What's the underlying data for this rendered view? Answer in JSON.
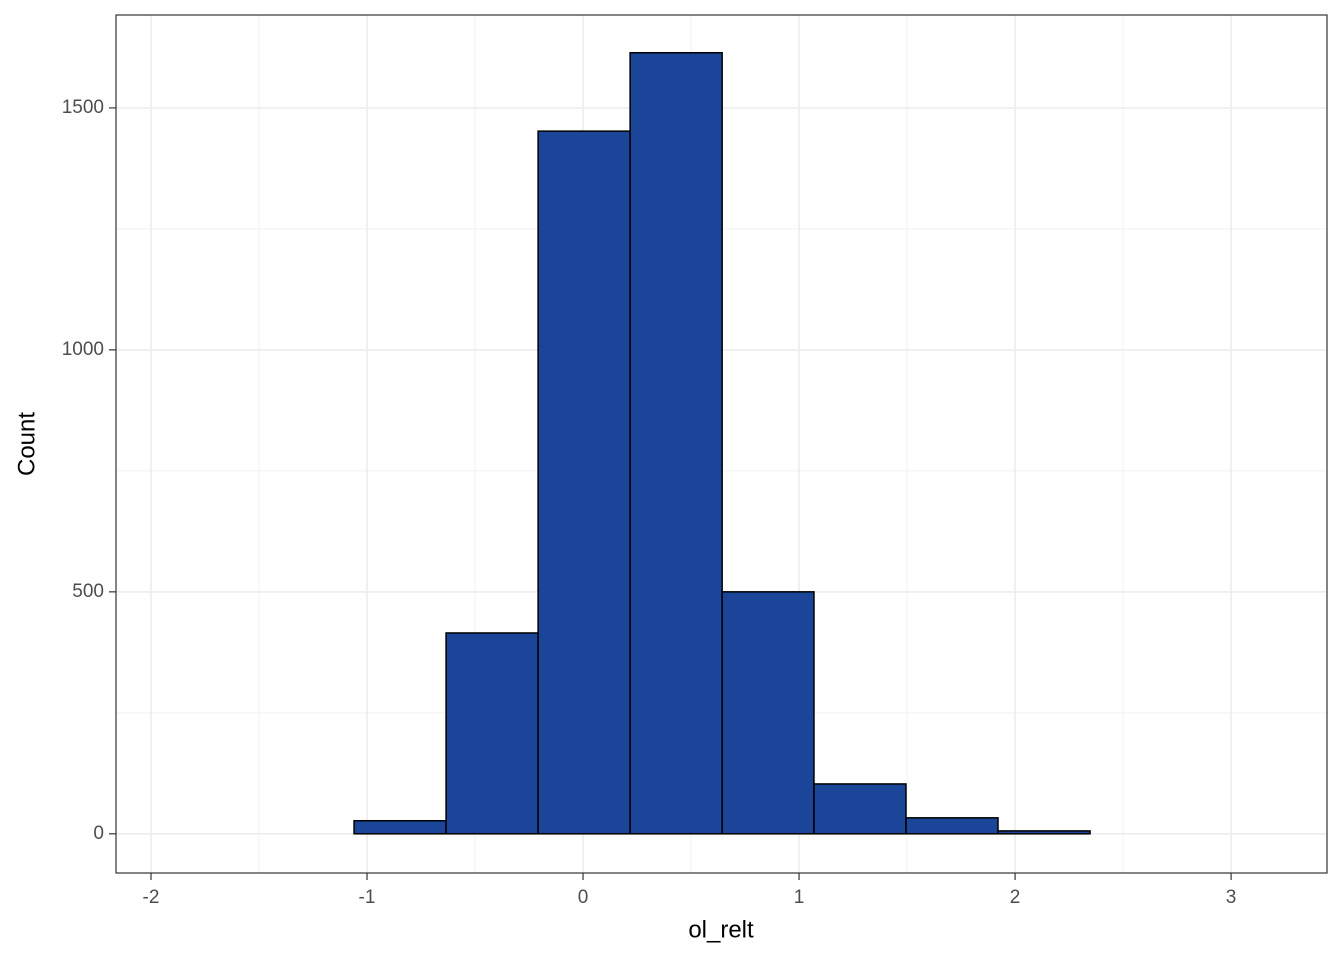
{
  "chart_data": {
    "type": "histogram",
    "x_label": "ol_relt",
    "y_label": "Count",
    "bins": [
      -1.907,
      -1.481,
      -1.06,
      -0.634,
      -0.208,
      0.218,
      0.644,
      1.069,
      1.495,
      1.921,
      2.347,
      2.773,
      3.199
    ],
    "values": [
      0,
      0,
      27,
      415,
      1452,
      1614,
      500,
      103,
      33,
      6,
      0,
      0
    ],
    "color": "#1a4599",
    "xlim": [
      -2.162,
      3.444
    ],
    "xticks": [
      -2,
      -1,
      0,
      1,
      2,
      3
    ],
    "ylim": [
      -81,
      1692
    ],
    "yticks": [
      0,
      500,
      1000,
      1500
    ],
    "grid": true
  }
}
